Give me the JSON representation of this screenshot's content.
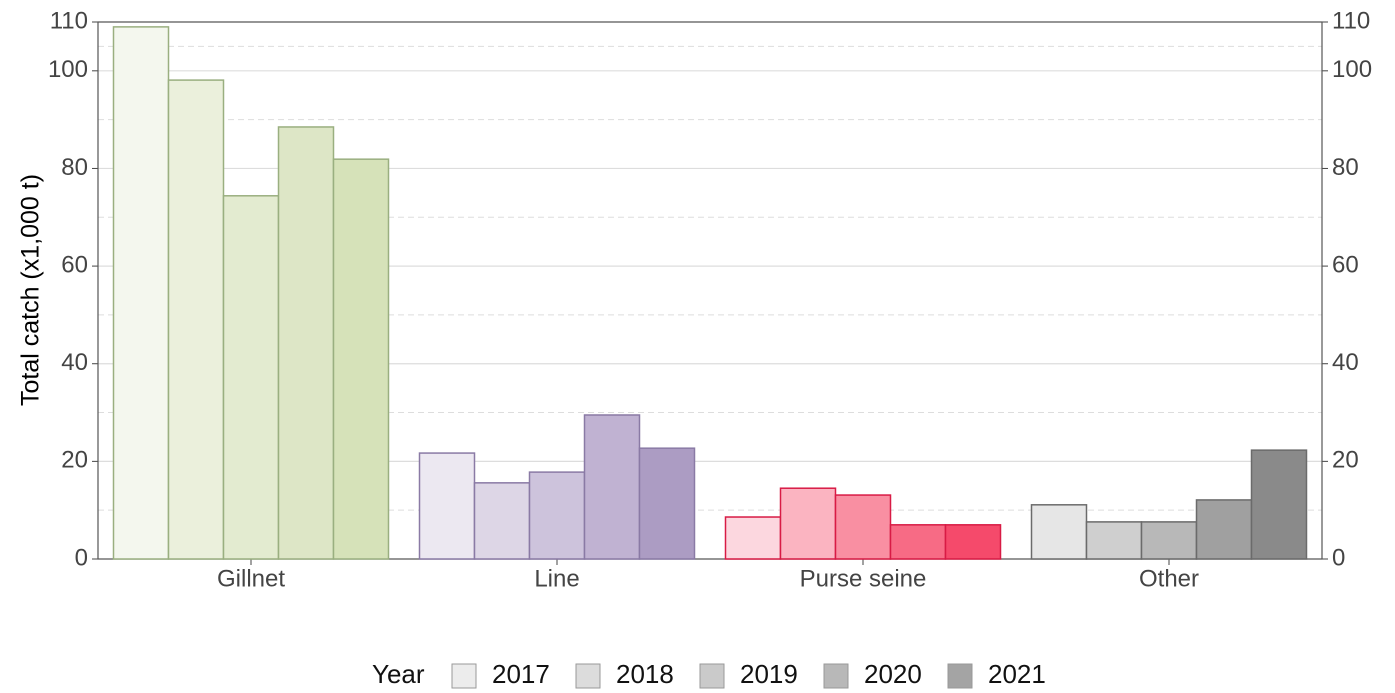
{
  "chart_data": {
    "type": "bar",
    "y_label": "Total catch (x1,000 t)",
    "legend_title": "Year",
    "categories": [
      "Gillnet",
      "Line",
      "Purse seine",
      "Other"
    ],
    "category_strokes": [
      "#9aaf80",
      "#8a7aa5",
      "#d81b45",
      "#6b6b6b"
    ],
    "series": [
      {
        "name": "2017",
        "color": "#ececec",
        "fills": [
          "#f4f7ee",
          "#ece8f1",
          "#fcd7df",
          "#e6e6e6"
        ],
        "values": [
          109,
          21.7,
          8.6,
          11.1
        ]
      },
      {
        "name": "2018",
        "color": "#dcdcdc",
        "fills": [
          "#ebf0dc",
          "#ddd6e6",
          "#fbb4c1",
          "#cfcfcf"
        ],
        "values": [
          98.1,
          15.6,
          14.5,
          7.6
        ]
      },
      {
        "name": "2019",
        "color": "#cacaca",
        "fills": [
          "#e3ebd0",
          "#cdc3dc",
          "#f98fa2",
          "#b8b8b8"
        ],
        "values": [
          74.4,
          17.8,
          13.1,
          7.6
        ]
      },
      {
        "name": "2020",
        "color": "#b8b8b8",
        "fills": [
          "#dde6c6",
          "#c0b2d2",
          "#f76b85",
          "#a0a0a0"
        ],
        "values": [
          88.5,
          29.5,
          7.0,
          12.1
        ]
      },
      {
        "name": "2021",
        "color": "#a4a4a4",
        "fills": [
          "#d6e2b9",
          "#ac9cc3",
          "#f54a6b",
          "#8a8a8a"
        ],
        "values": [
          81.9,
          22.7,
          7.0,
          22.3
        ]
      }
    ],
    "ylim": [
      0,
      110
    ],
    "yticks": [
      0,
      20,
      40,
      60,
      80,
      100,
      110
    ],
    "minor_gridlines": [
      10,
      30,
      50,
      70,
      90,
      105
    ],
    "grid": true
  }
}
